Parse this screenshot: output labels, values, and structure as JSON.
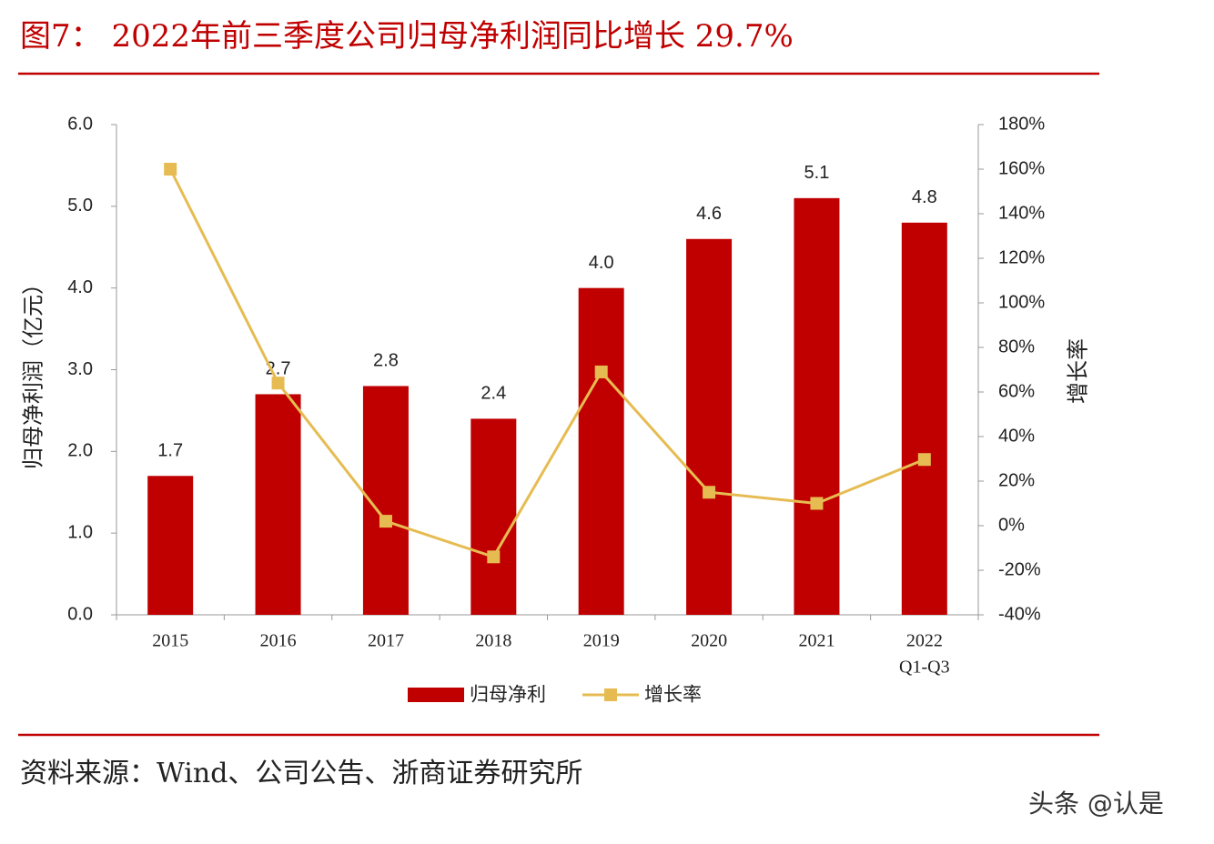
{
  "chart_data": {
    "type": "bar-line",
    "title": "图7：  2022年前三季度公司归母净利润同比增长 29.7%",
    "categories": [
      "2015",
      "2016",
      "2017",
      "2018",
      "2019",
      "2020",
      "2021",
      [
        "2022",
        "Q1-Q3"
      ]
    ],
    "series": [
      {
        "name": "归母净利",
        "type": "bar",
        "color": "#c00000",
        "values": [
          1.7,
          2.7,
          2.8,
          2.4,
          4.0,
          4.6,
          5.1,
          4.8
        ],
        "value_labels": [
          "1.7",
          "2.7",
          "2.8",
          "2.4",
          "4.0",
          "4.6",
          "5.1",
          "4.8"
        ]
      },
      {
        "name": "增长率",
        "type": "line",
        "axis": "y2",
        "color": "#e6bc52",
        "values": [
          160,
          64,
          2,
          -14,
          69,
          15,
          10,
          29.7
        ]
      }
    ],
    "ylabel": "归母净利润（亿元）",
    "y2label": "增长率",
    "ylim": [
      0,
      6
    ],
    "yticks": [
      {
        "value": 0,
        "label": "0.0"
      },
      {
        "value": 1,
        "label": "1.0"
      },
      {
        "value": 2,
        "label": "2.0"
      },
      {
        "value": 3,
        "label": "3.0"
      },
      {
        "value": 4,
        "label": "4.0"
      },
      {
        "value": 5,
        "label": "5.0"
      },
      {
        "value": 6,
        "label": "6.0"
      }
    ],
    "y2lim": [
      -40,
      180
    ],
    "y2ticks": [
      {
        "value": -40,
        "label": "-40%"
      },
      {
        "value": -20,
        "label": "-20%"
      },
      {
        "value": 0,
        "label": "0%"
      },
      {
        "value": 20,
        "label": "20%"
      },
      {
        "value": 40,
        "label": "40%"
      },
      {
        "value": 60,
        "label": "60%"
      },
      {
        "value": 80,
        "label": "80%"
      },
      {
        "value": 100,
        "label": "100%"
      },
      {
        "value": 120,
        "label": "120%"
      },
      {
        "value": 140,
        "label": "140%"
      },
      {
        "value": 160,
        "label": "160%"
      },
      {
        "value": 180,
        "label": "180%"
      }
    ],
    "source": "资料来源：Wind、公司公告、浙商证券研究所",
    "watermark": "头条 @认是"
  }
}
